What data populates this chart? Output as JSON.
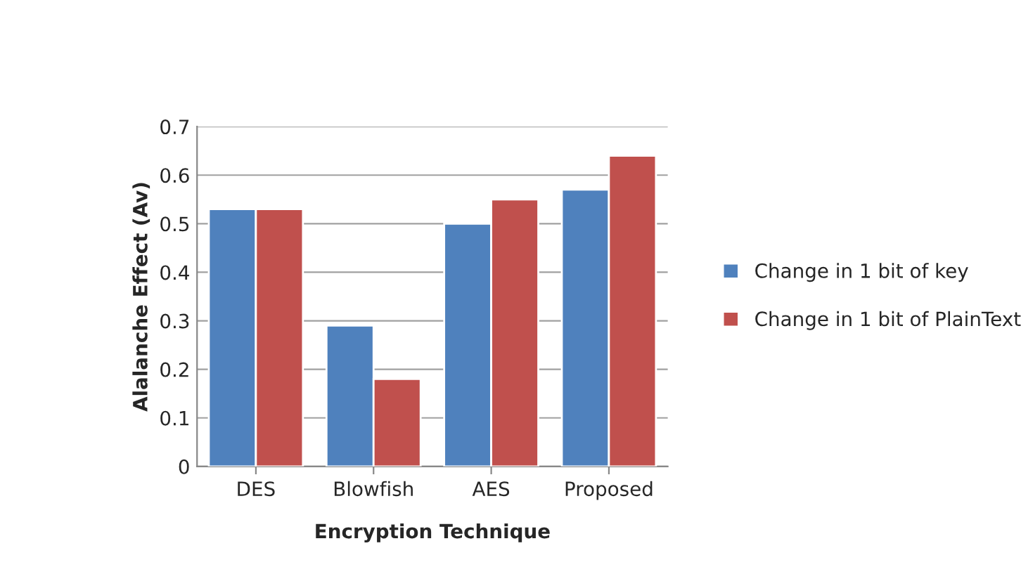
{
  "chart_data": {
    "type": "bar",
    "xlabel": "Encryption Technique",
    "ylabel": "Alalanche Effect (Av)",
    "categories": [
      "DES",
      "Blowfish",
      "AES",
      "Proposed"
    ],
    "series": [
      {
        "name": "Change in 1 bit of key",
        "color": "#4f81bd",
        "values": [
          0.53,
          0.29,
          0.5,
          0.57
        ]
      },
      {
        "name": "Change in 1 bit of PlainText",
        "color": "#c0504d",
        "values": [
          0.53,
          0.18,
          0.55,
          0.64
        ]
      }
    ],
    "ylim": [
      0,
      0.7
    ],
    "yticks": [
      0,
      0.1,
      0.2,
      0.3,
      0.4,
      0.5,
      0.6,
      0.7
    ],
    "grid": "y",
    "legend": "right"
  }
}
